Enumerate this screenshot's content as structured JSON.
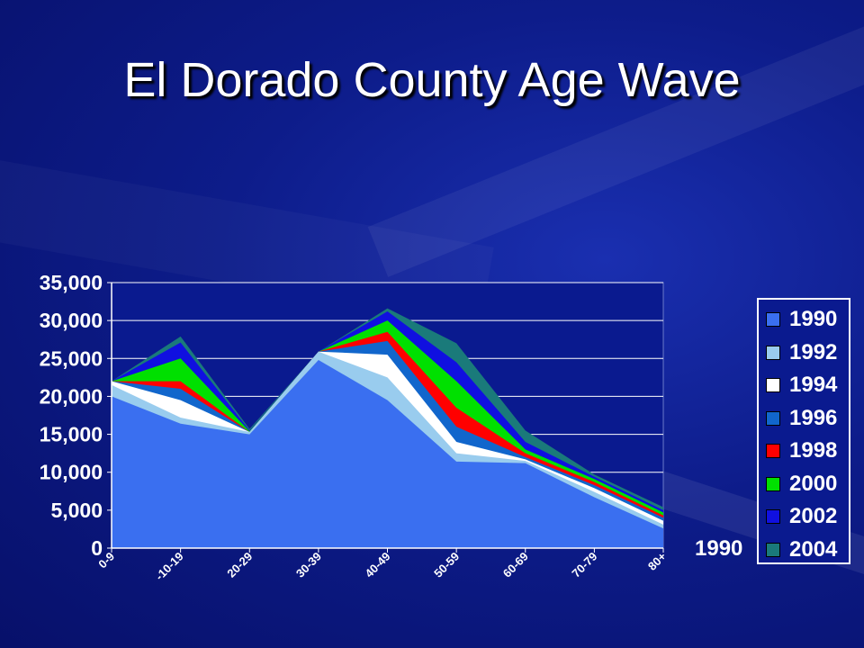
{
  "slide": {
    "title": "El Dorado County Age Wave"
  },
  "legend_outside_label": "1990",
  "chart_data": {
    "type": "area",
    "title": "",
    "xlabel": "",
    "ylabel": "",
    "categories": [
      "0-9",
      "10-19",
      "20-29",
      "30-39",
      "40-49",
      "50-59",
      "60-69",
      "70-79",
      "80+"
    ],
    "category_labels": [
      "0-9",
      "-10-19",
      "20-29",
      "30-39",
      "40-49",
      "50-59",
      "60-69",
      "70-79",
      "80+"
    ],
    "ylim": [
      0,
      35000
    ],
    "yticks": [
      0,
      5000,
      10000,
      15000,
      20000,
      25000,
      30000,
      35000
    ],
    "ytick_labels": [
      "0",
      "5,000",
      "10,000",
      "15,000",
      "20,000",
      "25,000",
      "30,000",
      "35,000"
    ],
    "grid": true,
    "legend_position": "right",
    "series": [
      {
        "name": "2004",
        "color": "#1a7a7a",
        "values": [
          22000,
          27900,
          15700,
          25900,
          31600,
          27000,
          15500,
          9700,
          5400
        ]
      },
      {
        "name": "2002",
        "color": "#1010e0",
        "values": [
          22000,
          27100,
          15500,
          25900,
          31200,
          24500,
          14000,
          9400,
          5000
        ]
      },
      {
        "name": "2000",
        "color": "#00e000",
        "values": [
          22000,
          25000,
          15400,
          25900,
          30000,
          22000,
          13000,
          9100,
          4700
        ]
      },
      {
        "name": "1998",
        "color": "#ff0000",
        "values": [
          22000,
          22000,
          15300,
          25900,
          28500,
          18500,
          12500,
          8700,
          4300
        ]
      },
      {
        "name": "1996",
        "color": "#1166cc",
        "values": [
          22000,
          21000,
          15300,
          25900,
          27300,
          16000,
          12000,
          8300,
          4000
        ]
      },
      {
        "name": "1994",
        "color": "#ffffff",
        "values": [
          22000,
          19500,
          15300,
          25900,
          25500,
          14000,
          11700,
          7900,
          3600
        ]
      },
      {
        "name": "1992",
        "color": "#99ccee",
        "values": [
          21500,
          17200,
          15300,
          25900,
          22500,
          12500,
          11500,
          7400,
          3100
        ]
      },
      {
        "name": "1990",
        "color": "#3a6ff0",
        "values": [
          20000,
          16400,
          15000,
          24800,
          19500,
          11400,
          11200,
          6700,
          2600
        ]
      }
    ],
    "legend_order": [
      "1990",
      "1992",
      "1994",
      "1996",
      "1998",
      "2000",
      "2002",
      "2004"
    ]
  }
}
